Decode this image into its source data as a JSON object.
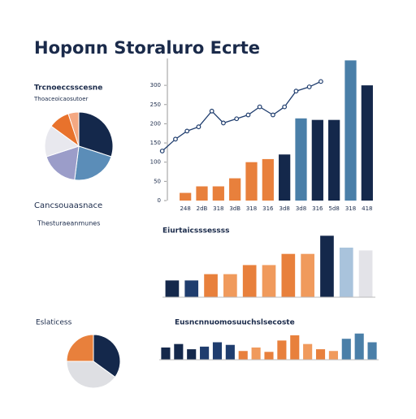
{
  "title": "Hopoпn Storaluro Ecrte",
  "labels": [
    "Cancsouaasnace",
    "Thesturaeanmunes",
    "Eslaticess"
  ],
  "chart_data": [
    {
      "type": "pie",
      "title": "Trcnoeccsscesne",
      "subtitle": "Thoaceoicaosutoer",
      "values": [
        30,
        22,
        18,
        15,
        10,
        5
      ],
      "colors": [
        "#14284b",
        "#5b8db8",
        "#9b9dc9",
        "#e8e8ee",
        "#e8722c",
        "#f4a882"
      ]
    },
    {
      "type": "bar",
      "categories": [
        "248",
        "2dB",
        "318",
        "3dB",
        "318",
        "316",
        "3d8",
        "3d8",
        "316",
        "5d8",
        "318",
        "418"
      ],
      "ylim": [
        0,
        370
      ],
      "yticks": [
        0,
        50,
        100,
        150,
        200,
        250,
        300
      ],
      "series": [
        {
          "values": [
            20,
            37,
            37,
            58,
            100,
            108,
            120,
            214,
            210,
            210,
            365,
            300
          ],
          "colors": [
            "#e8803c",
            "#e8803c",
            "#e8803c",
            "#e8803c",
            "#e8803c",
            "#e8803c",
            "#14284b",
            "#4a7fa8",
            "#14284b",
            "#14284b",
            "#4a7fa8",
            "#14284b"
          ]
        },
        {
          "type": "line",
          "color": "#1f3d6e",
          "x": [
            -1.4,
            -0.6,
            0.1,
            0.8,
            1.6,
            2.3,
            3.1,
            3.8,
            4.5,
            5.3,
            6,
            6.7,
            7.5,
            8.2
          ],
          "values": [
            129,
            160,
            181,
            192,
            233,
            202,
            213,
            223,
            244,
            223,
            244,
            285,
            296,
            310
          ]
        }
      ]
    },
    {
      "type": "bar",
      "title": "Eiurtaicsssessss",
      "ylim": [
        0,
        100
      ],
      "series": [
        {
          "values": [
            24,
            24,
            33,
            33,
            46,
            46,
            62,
            62,
            88,
            71,
            67
          ],
          "colors": [
            "#14284b",
            "#1f3d6e",
            "#e8803c",
            "#f09a5c",
            "#e8803c",
            "#f09a5c",
            "#e8803c",
            "#f09a5c",
            "#14284b",
            "#a9c3dc",
            "#e3e3e8"
          ]
        }
      ]
    },
    {
      "type": "pie",
      "values": [
        35,
        40,
        25
      ],
      "colors": [
        "#14284b",
        "#dedfe3",
        "#e8803c"
      ]
    },
    {
      "type": "bar",
      "title": "Eusncnnuomosuuchslsecoste",
      "ylim": [
        0,
        40
      ],
      "series": [
        {
          "values": [
            14,
            18,
            12,
            15,
            20,
            17,
            10,
            14,
            9,
            22,
            28,
            18,
            12,
            10,
            24,
            30,
            20
          ],
          "colors": [
            "#14284b",
            "#14284b",
            "#14284b",
            "#1f3d6e",
            "#1f3d6e",
            "#1f3d6e",
            "#e8803c",
            "#f09a5c",
            "#e8803c",
            "#e8803c",
            "#e8803c",
            "#f09a5c",
            "#e8803c",
            "#f09a5c",
            "#4a7fa8",
            "#4a7fa8",
            "#4a7fa8"
          ]
        }
      ]
    }
  ]
}
